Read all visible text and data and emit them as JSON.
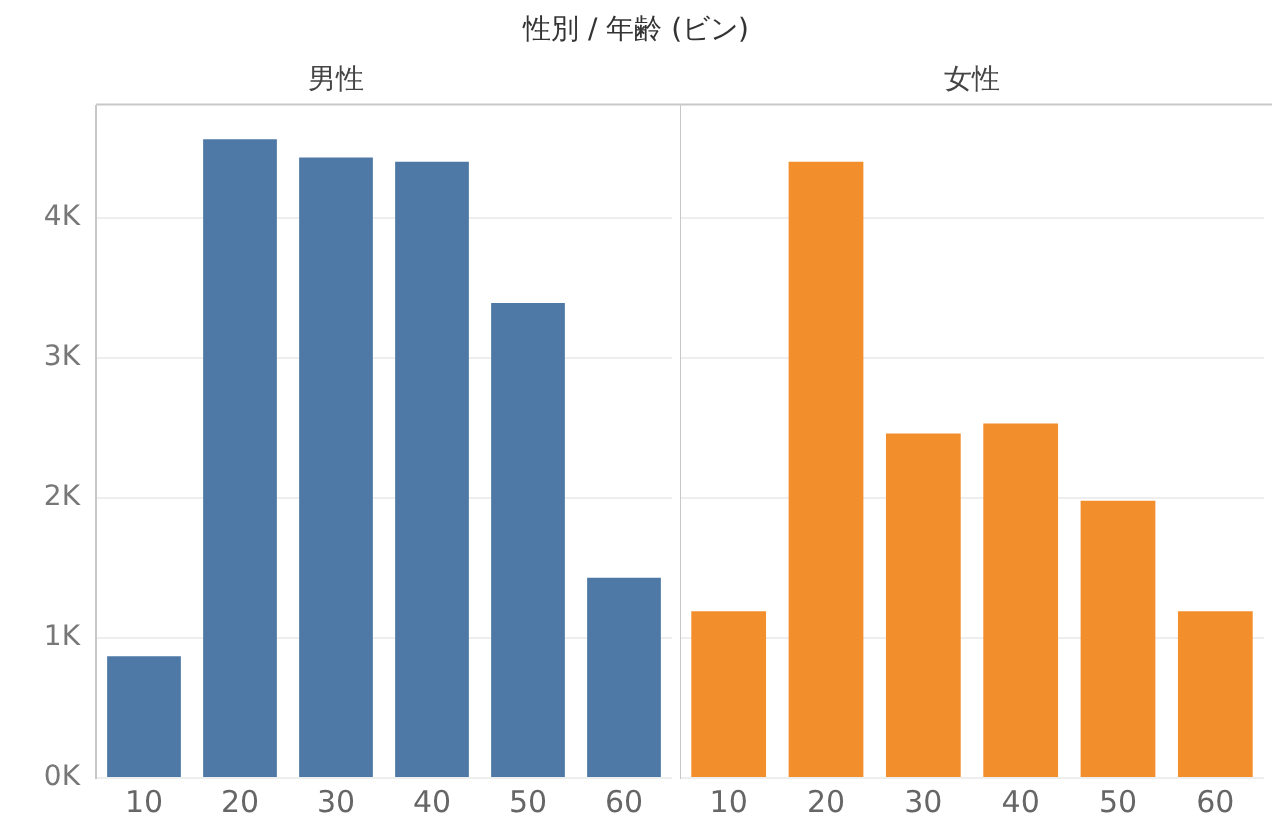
{
  "chart_data": [
    {
      "type": "bar",
      "title": "性別 / 年齢 (ビン)",
      "subtitle": "男性",
      "categories": [
        "10",
        "20",
        "30",
        "40",
        "50",
        "60"
      ],
      "values": [
        870,
        4560,
        4430,
        4400,
        3390,
        1430
      ],
      "color": "#4e79a7",
      "ylim": [
        0,
        4800
      ],
      "yticks": [
        {
          "value": 0,
          "label": "0K"
        },
        {
          "value": 1000,
          "label": "1K"
        },
        {
          "value": 2000,
          "label": "2K"
        },
        {
          "value": 3000,
          "label": "3K"
        },
        {
          "value": 4000,
          "label": "4K"
        }
      ],
      "grid": "y"
    },
    {
      "type": "bar",
      "subtitle": "女性",
      "categories": [
        "10",
        "20",
        "30",
        "40",
        "50",
        "60"
      ],
      "values": [
        1190,
        4400,
        2460,
        2530,
        1980,
        1190
      ],
      "color": "#f28e2b",
      "ylim": [
        0,
        4800
      ],
      "yticks": [
        {
          "value": 0,
          "label": null
        },
        {
          "value": 1000,
          "label": null
        },
        {
          "value": 2000,
          "label": null
        },
        {
          "value": 3000,
          "label": null
        },
        {
          "value": 4000,
          "label": null
        }
      ],
      "grid": "y",
      "tick_labels": "x"
    }
  ]
}
